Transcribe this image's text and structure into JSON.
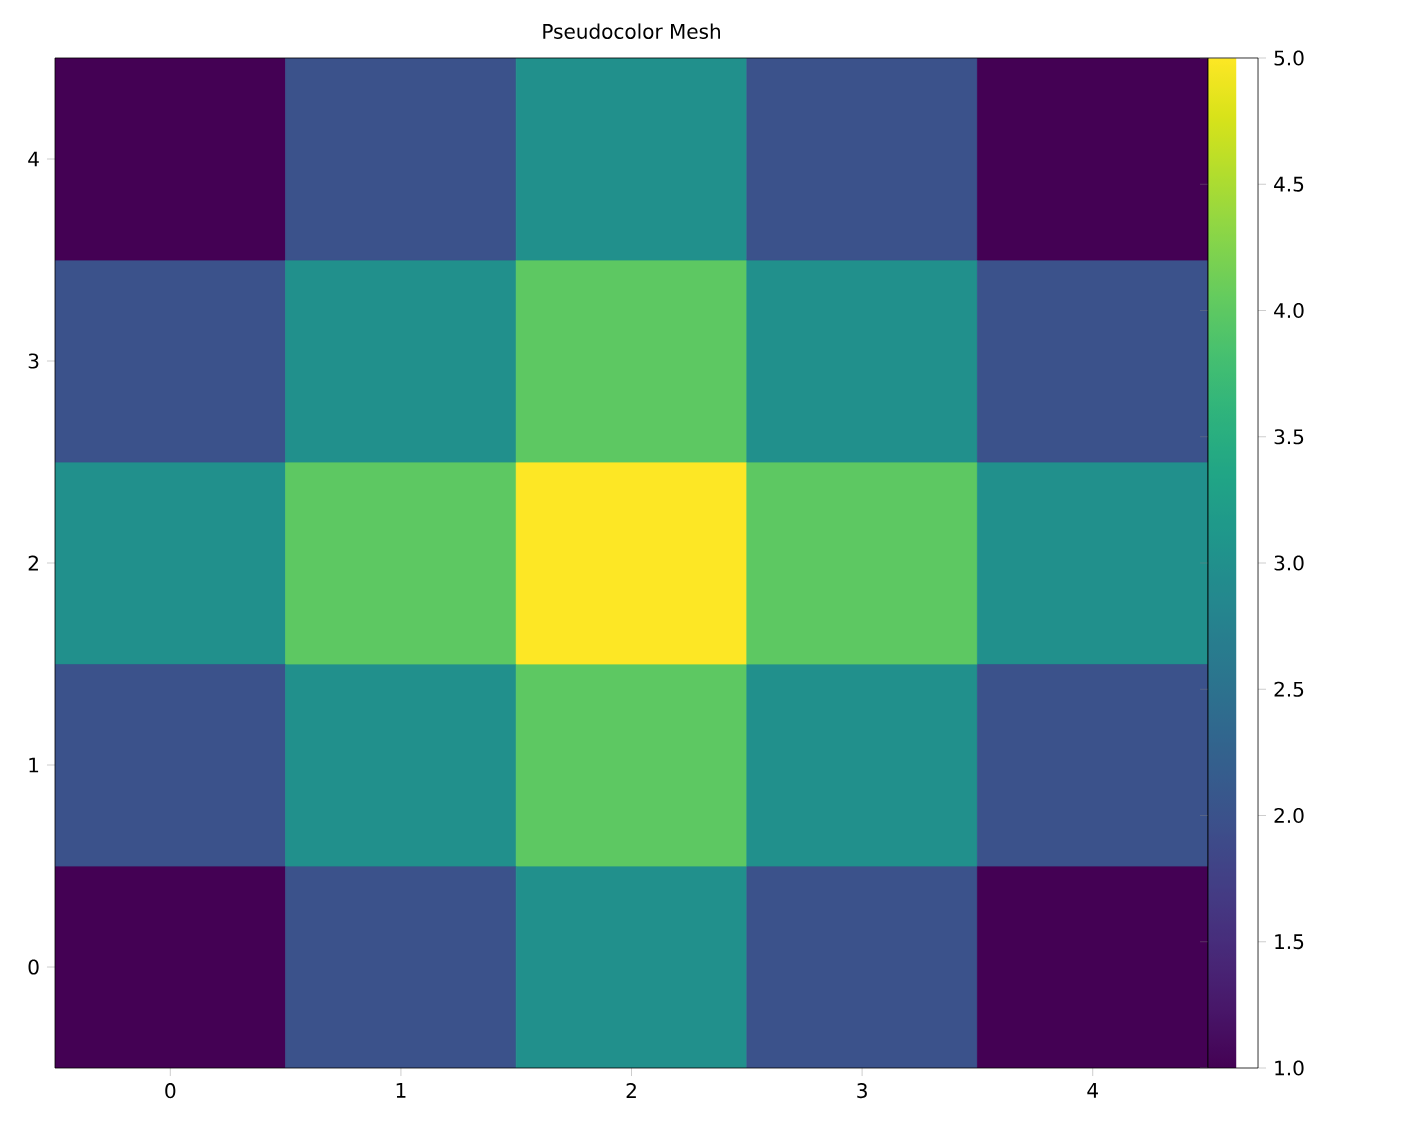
{
  "chart_data": {
    "type": "heatmap",
    "title": "Pseudocolor Mesh",
    "categories": [
      "0",
      "1",
      "2",
      "3",
      "4"
    ],
    "y_categories": [
      "4",
      "3",
      "2",
      "1",
      "0"
    ],
    "cells": [
      [
        1,
        2,
        3,
        2,
        1
      ],
      [
        2,
        3,
        4,
        3,
        2
      ],
      [
        3,
        4,
        5,
        4,
        3
      ],
      [
        2,
        3,
        4,
        3,
        2
      ],
      [
        1,
        2,
        3,
        2,
        1
      ]
    ],
    "clim": [
      1,
      5
    ],
    "cticks": [
      {
        "value": 1,
        "label": "1.0"
      },
      {
        "value": 1.5,
        "label": "1.5"
      },
      {
        "value": 2,
        "label": "2.0"
      },
      {
        "value": 2.5,
        "label": "2.5"
      },
      {
        "value": 3,
        "label": "3.0"
      },
      {
        "value": 3.5,
        "label": "3.5"
      },
      {
        "value": 4,
        "label": "4.0"
      },
      {
        "value": 4.5,
        "label": "4.5"
      },
      {
        "value": 5,
        "label": "5.0"
      }
    ]
  }
}
